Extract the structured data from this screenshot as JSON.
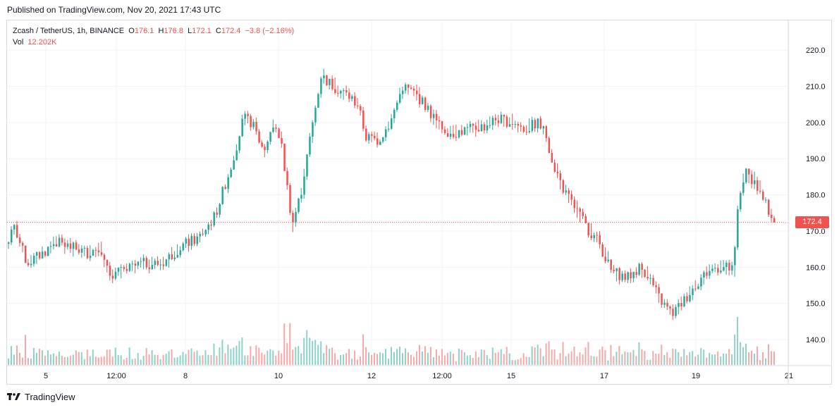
{
  "publish_line": "Published on TradingView.com, Nov 20, 2021 17:43 UTC",
  "legend": {
    "symbol": "Zcash / TetherUS, 1h, BINANCE",
    "open_label": "O",
    "open_value": "176.1",
    "high_label": "H",
    "high_value": "176.8",
    "low_label": "L",
    "low_value": "172.1",
    "close_label": "C",
    "close_value": "172.4",
    "change": "−3.8 (−2.16%)",
    "vol_label": "Vol",
    "vol_value": "12.202K"
  },
  "footer": {
    "brand": "TradingView"
  },
  "colors": {
    "up": "#26a69a",
    "down": "#ef5350",
    "vol_up": "#8ed1c9",
    "vol_down": "#f4a9a8",
    "grid": "#f0f3fa",
    "text": "#131722",
    "price_line": "#ef5350"
  },
  "chart_data": {
    "type": "candlestick",
    "symbol": "Zcash / TetherUS",
    "interval": "1h",
    "exchange": "BINANCE",
    "price_axis": {
      "min": 133,
      "max": 228,
      "ticks": [
        140.0,
        150.0,
        160.0,
        170.0,
        180.0,
        190.0,
        200.0,
        210.0,
        220.0
      ]
    },
    "y_tick_labels": [
      "140.0",
      "150.0",
      "160.0",
      "170.0",
      "180.0",
      "190.0",
      "200.0",
      "210.0",
      "220.0"
    ],
    "x_tick_labels": [
      "5",
      "12:00",
      "8",
      "10",
      "12",
      "12:00",
      "15",
      "17",
      "19",
      "21"
    ],
    "last_price": 172.4,
    "last_price_label": "172.4",
    "grid": true,
    "price_path_anchors": [
      [
        0,
        166.5
      ],
      [
        10,
        171
      ],
      [
        25,
        161
      ],
      [
        45,
        164
      ],
      [
        60,
        167
      ],
      [
        85,
        165
      ],
      [
        100,
        164
      ],
      [
        115,
        166
      ],
      [
        120,
        161
      ],
      [
        125,
        158
      ],
      [
        145,
        159
      ],
      [
        165,
        161
      ],
      [
        190,
        161
      ],
      [
        200,
        163
      ],
      [
        215,
        166
      ],
      [
        235,
        168
      ],
      [
        255,
        174
      ],
      [
        275,
        188
      ],
      [
        290,
        201
      ],
      [
        300,
        200
      ],
      [
        315,
        192
      ],
      [
        325,
        199
      ],
      [
        335,
        196
      ],
      [
        350,
        172
      ],
      [
        360,
        180
      ],
      [
        375,
        200
      ],
      [
        385,
        213
      ],
      [
        400,
        210
      ],
      [
        415,
        208
      ],
      [
        430,
        205
      ],
      [
        440,
        196
      ],
      [
        455,
        195
      ],
      [
        470,
        200
      ],
      [
        485,
        210
      ],
      [
        500,
        208
      ],
      [
        515,
        204
      ],
      [
        530,
        199
      ],
      [
        545,
        197
      ],
      [
        565,
        198
      ],
      [
        585,
        199
      ],
      [
        600,
        201
      ],
      [
        620,
        200
      ],
      [
        635,
        198
      ],
      [
        650,
        200
      ],
      [
        660,
        197
      ],
      [
        670,
        188
      ],
      [
        685,
        180
      ],
      [
        700,
        175
      ],
      [
        710,
        171
      ],
      [
        725,
        167
      ],
      [
        740,
        159
      ],
      [
        760,
        157
      ],
      [
        775,
        160
      ],
      [
        785,
        158
      ],
      [
        800,
        151
      ],
      [
        815,
        147
      ],
      [
        830,
        151
      ],
      [
        850,
        157
      ],
      [
        860,
        159
      ],
      [
        870,
        160
      ],
      [
        880,
        160
      ],
      [
        890,
        159
      ],
      [
        895,
        175
      ],
      [
        900,
        183
      ],
      [
        905,
        186
      ],
      [
        915,
        184
      ],
      [
        925,
        179
      ],
      [
        935,
        175
      ],
      [
        940,
        172.4
      ]
    ]
  }
}
